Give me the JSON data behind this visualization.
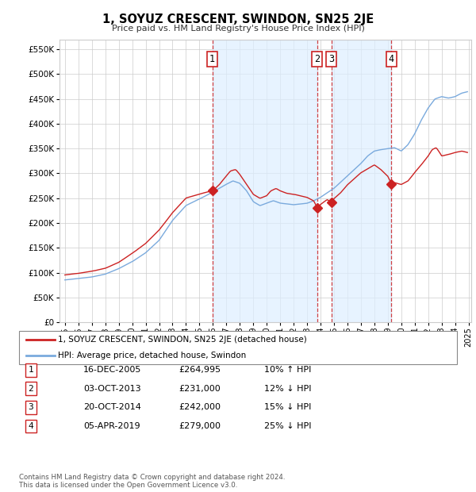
{
  "title": "1, SOYUZ CRESCENT, SWINDON, SN25 2JE",
  "subtitle": "Price paid vs. HM Land Registry's House Price Index (HPI)",
  "ylabel_values": [
    0,
    50000,
    100000,
    150000,
    200000,
    250000,
    300000,
    350000,
    400000,
    450000,
    500000,
    550000
  ],
  "legend_line1": "1, SOYUZ CRESCENT, SWINDON, SN25 2JE (detached house)",
  "legend_line2": "HPI: Average price, detached house, Swindon",
  "transactions": [
    {
      "num": 1,
      "date": "16-DEC-2005",
      "price": 264995,
      "pct": "10%",
      "dir": "↑",
      "year": 2005.96
    },
    {
      "num": 2,
      "date": "03-OCT-2013",
      "price": 231000,
      "pct": "12%",
      "dir": "↓",
      "year": 2013.75
    },
    {
      "num": 3,
      "date": "20-OCT-2014",
      "price": 242000,
      "pct": "15%",
      "dir": "↓",
      "year": 2014.8
    },
    {
      "num": 4,
      "date": "05-APR-2019",
      "price": 279000,
      "pct": "25%",
      "dir": "↓",
      "year": 2019.27
    }
  ],
  "footer1": "Contains HM Land Registry data © Crown copyright and database right 2024.",
  "footer2": "This data is licensed under the Open Government Licence v3.0.",
  "line_color_red": "#cc2222",
  "line_color_blue": "#7aaadd",
  "shade_color": "#ddeeff",
  "vline_color": "#cc2222",
  "box_color": "#cc2222",
  "plot_bg": "#ffffff",
  "grid_color": "#cccccc"
}
